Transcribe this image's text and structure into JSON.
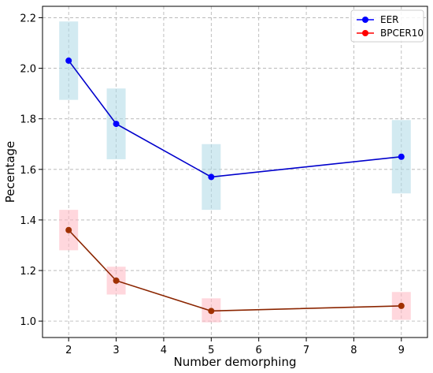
{
  "chart_data": {
    "type": "line",
    "xlabel": "Number demorphing",
    "ylabel": "Pecentage",
    "x": [
      2,
      3,
      5,
      9
    ],
    "xlim": [
      1.45,
      9.55
    ],
    "ylim": [
      0.935,
      2.245
    ],
    "xticks": [
      2,
      3,
      4,
      5,
      6,
      7,
      8,
      9
    ],
    "yticks": [
      1.0,
      1.2,
      1.4,
      1.6,
      1.8,
      2.0,
      2.2
    ],
    "grid": true,
    "legend_position": "top-right",
    "series": [
      {
        "name": "EER",
        "values": [
          2.03,
          1.78,
          1.57,
          1.65
        ],
        "lower": [
          1.875,
          1.64,
          1.44,
          1.505
        ],
        "upper": [
          2.185,
          1.92,
          1.7,
          1.795
        ],
        "line_color": "#0000cc",
        "marker_color": "#0000ff",
        "band_color": "#add8e6"
      },
      {
        "name": "BPCER10",
        "values": [
          1.36,
          1.16,
          1.04,
          1.06
        ],
        "lower": [
          1.28,
          1.105,
          0.995,
          1.005
        ],
        "upper": [
          1.44,
          1.215,
          1.09,
          1.115
        ],
        "line_color": "#8b2500",
        "marker_color": "#ff0000",
        "band_color": "#ffb6c1",
        "marker_outline": "#a03000"
      }
    ],
    "legend": [
      {
        "label": "EER",
        "color": "#0000ff"
      },
      {
        "label": "BPCER10",
        "color": "#ff0000"
      }
    ]
  }
}
